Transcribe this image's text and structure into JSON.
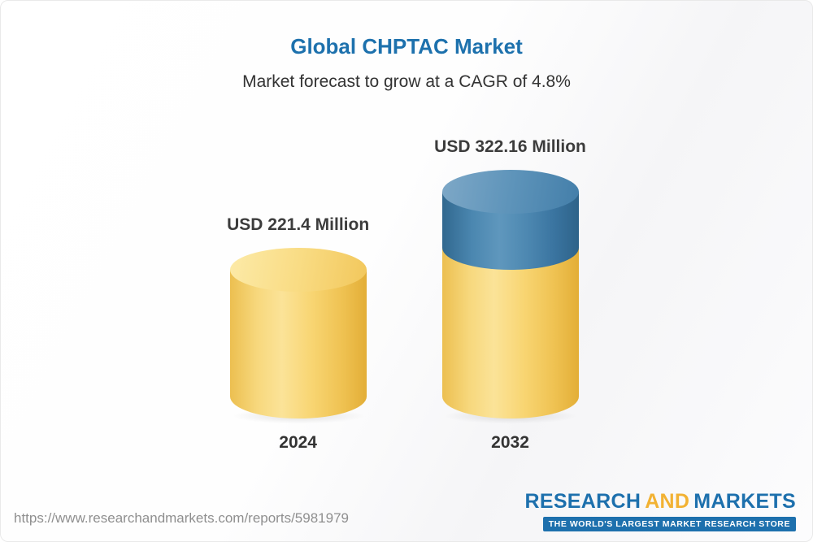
{
  "chart_data": {
    "type": "bar",
    "variant": "3d-cylinder-stacked",
    "title": "Global CHPTAC Market",
    "subtitle": "Market forecast to grow at a CAGR of 4.8%",
    "cagr_percent": 4.8,
    "unit": "USD Million",
    "categories": [
      "2024",
      "2032"
    ],
    "values": [
      221.4,
      322.16
    ],
    "value_labels": [
      "USD 221.4 Million",
      "USD 322.16 Million"
    ],
    "series": [
      {
        "name": "base",
        "values": [
          221.4,
          221.4
        ],
        "color": "#f5cd63"
      },
      {
        "name": "growth",
        "values": [
          0,
          100.76
        ],
        "color": "#4280ab"
      }
    ],
    "axis": {
      "y_min": 0,
      "gridlines": false,
      "legend": false
    }
  },
  "footer": {
    "url": "https://www.researchandmarkets.com/reports/5981979",
    "logo": {
      "research": "RESEARCH",
      "and": "AND",
      "markets": "MARKETS",
      "tagline": "THE WORLD'S LARGEST MARKET RESEARCH STORE"
    }
  },
  "colors": {
    "title": "#1d71ad",
    "subtitle": "#333333",
    "value_label": "#3c3c3c",
    "category_label": "#333333",
    "url": "#8f8f8f",
    "logo_blue": "#1d70ad",
    "logo_gold": "#f2b233",
    "cylinder_yellow": "#f5cd63",
    "cylinder_blue": "#4280ab"
  }
}
